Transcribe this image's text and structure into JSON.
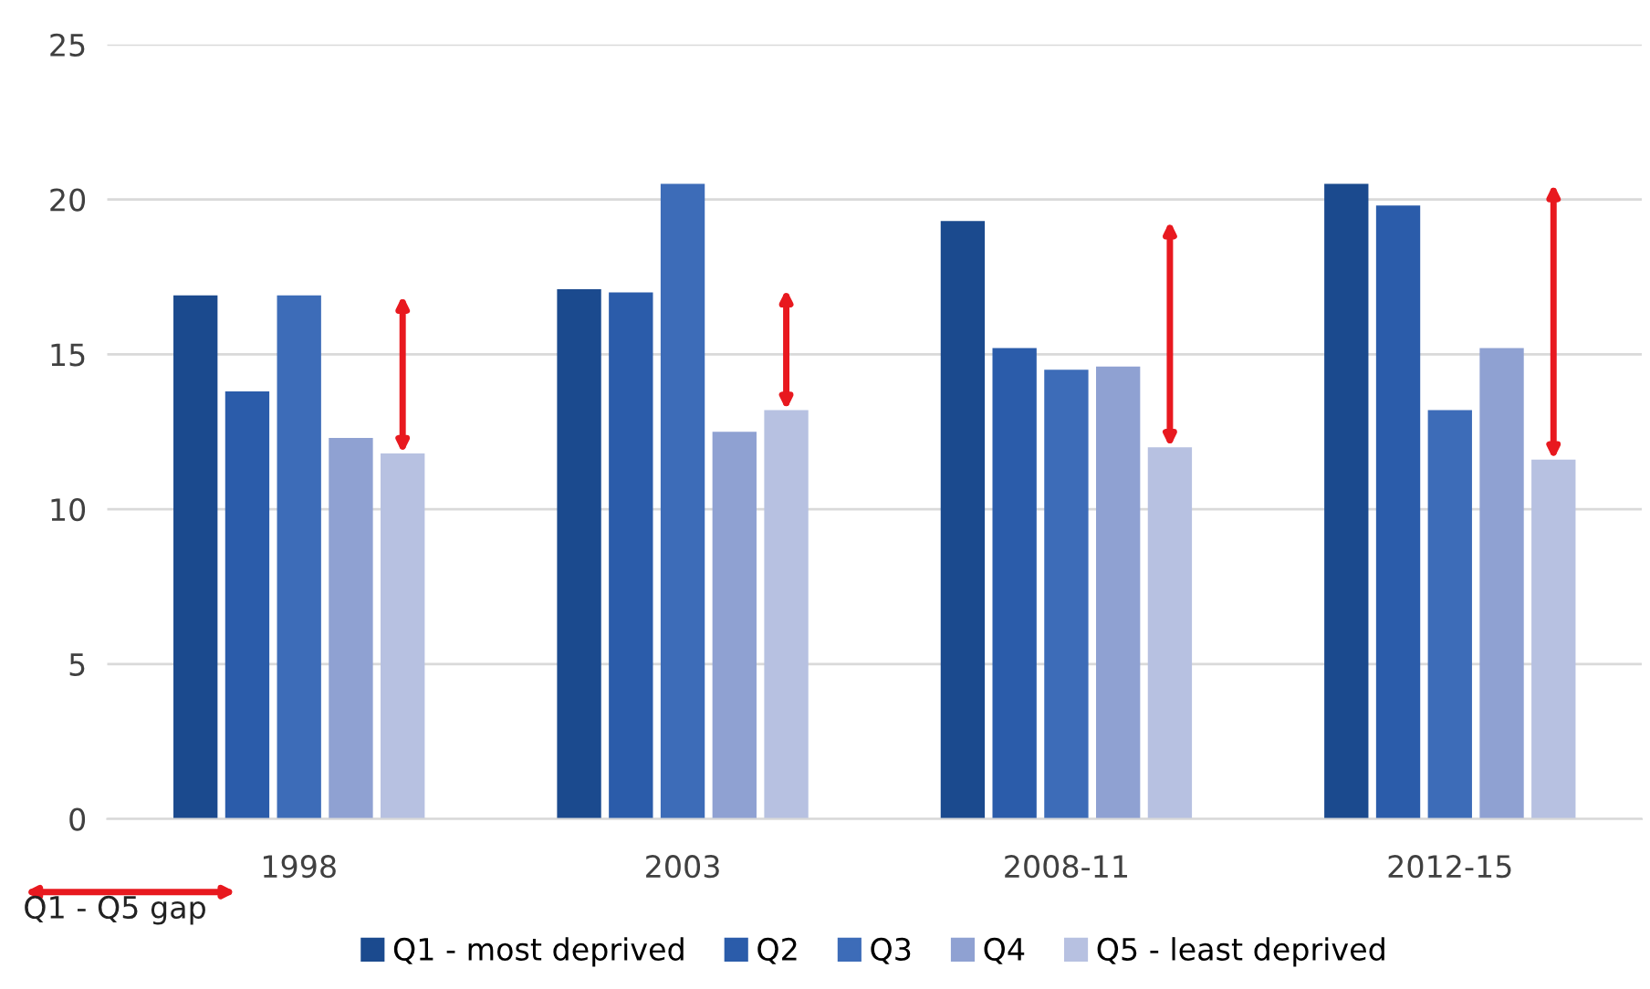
{
  "chart_data": {
    "type": "bar",
    "categories": [
      "1998",
      "2003",
      "2008-11",
      "2012-15"
    ],
    "series": [
      {
        "name": "Q1 - most deprived",
        "color": "#1b4a8e",
        "values": [
          16.9,
          17.1,
          19.3,
          20.5
        ]
      },
      {
        "name": "Q2",
        "color": "#2b5caa",
        "values": [
          13.8,
          17.0,
          15.2,
          19.8
        ]
      },
      {
        "name": "Q3",
        "color": "#3d6cb8",
        "values": [
          16.9,
          20.5,
          14.5,
          13.2
        ]
      },
      {
        "name": "Q4",
        "color": "#8fa1d2",
        "values": [
          12.3,
          12.5,
          14.6,
          15.2
        ]
      },
      {
        "name": "Q5 - least deprived",
        "color": "#b7c1e1",
        "values": [
          11.8,
          13.2,
          12.0,
          11.6
        ]
      }
    ],
    "ylim": [
      0,
      25
    ],
    "yticks": [
      0,
      5,
      10,
      15,
      20,
      25
    ],
    "grid": "y",
    "legend": "bottom",
    "annotations": [
      "Q1 - Q5 gap"
    ]
  }
}
